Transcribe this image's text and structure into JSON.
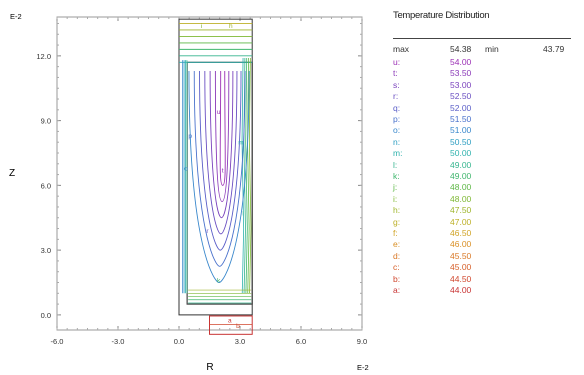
{
  "chart_data": {
    "type": "contour",
    "title": "Temperature Distribution",
    "xlabel": "R",
    "ylabel": "Z",
    "x_scale": "E-2",
    "y_scale": "E-2",
    "xlim": [
      -6.0,
      9.0
    ],
    "ylim": [
      -0.7,
      13.8
    ],
    "x_ticks": [
      "-6.0",
      "-3.0",
      "0.0",
      "3.0",
      "6.0",
      "9.0"
    ],
    "y_ticks": [
      "0.0",
      "3.0",
      "6.0",
      "9.0",
      "12.0"
    ],
    "max_label": "max",
    "max_value": "54.38",
    "min_label": "min",
    "min_value": "43.79",
    "levels": [
      {
        "label": "u:",
        "value": "54.00",
        "color": "#9b2fb5"
      },
      {
        "label": "t:",
        "value": "53.50",
        "color": "#8a38b8"
      },
      {
        "label": "s:",
        "value": "53.00",
        "color": "#7a42bd"
      },
      {
        "label": "r:",
        "value": "52.50",
        "color": "#6a4fc2"
      },
      {
        "label": "q:",
        "value": "52.00",
        "color": "#5a5ec8"
      },
      {
        "label": "p:",
        "value": "51.50",
        "color": "#4a72cc"
      },
      {
        "label": "o:",
        "value": "51.00",
        "color": "#3a88cc"
      },
      {
        "label": "n:",
        "value": "50.50",
        "color": "#2f9fc2"
      },
      {
        "label": "m:",
        "value": "50.00",
        "color": "#2fb2ad"
      },
      {
        "label": "l:",
        "value": "49.00",
        "color": "#35b58e"
      },
      {
        "label": "k:",
        "value": "49.00",
        "color": "#3fb66d"
      },
      {
        "label": "j:",
        "value": "48.00",
        "color": "#5db745"
      },
      {
        "label": "i:",
        "value": "48.00",
        "color": "#7eb833"
      },
      {
        "label": "h:",
        "value": "47.50",
        "color": "#9fb52b"
      },
      {
        "label": "g:",
        "value": "47.00",
        "color": "#bdb027"
      },
      {
        "label": "f:",
        "value": "46.50",
        "color": "#d0a325"
      },
      {
        "label": "e:",
        "value": "46.00",
        "color": "#d98f24"
      },
      {
        "label": "d:",
        "value": "45.50",
        "color": "#d97826"
      },
      {
        "label": "c:",
        "value": "45.00",
        "color": "#d65f29"
      },
      {
        "label": "b:",
        "value": "44.50",
        "color": "#d0472d"
      },
      {
        "label": "a:",
        "value": "44.00",
        "color": "#c83333"
      }
    ],
    "grid": false,
    "legend_position": "right"
  }
}
